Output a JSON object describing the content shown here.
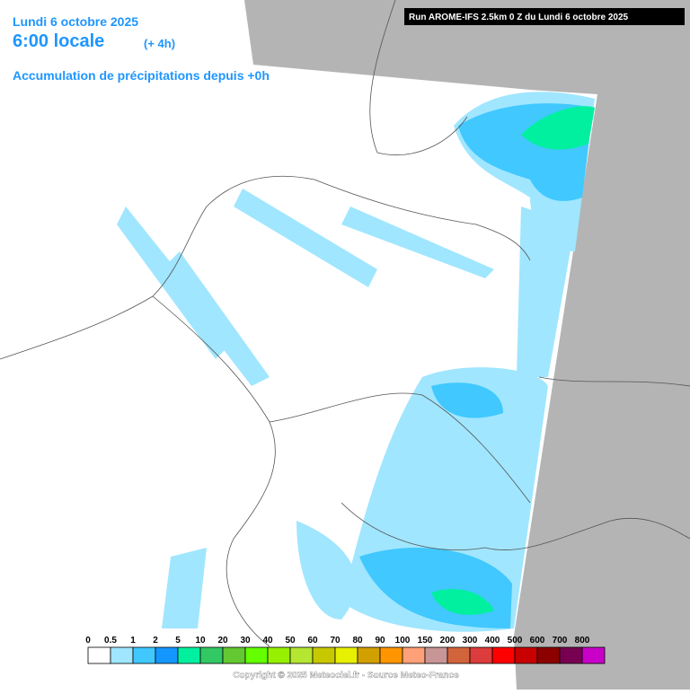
{
  "header": {
    "date": "Lundi 6 octobre 2025",
    "time": "6:00 locale",
    "offset": "(+ 4h)",
    "subtitle": "Accumulation de précipitations depuis +0h",
    "run": "Run AROME-IFS 2.5km 0 Z du Lundi 6 octobre 2025"
  },
  "legend": {
    "items": [
      {
        "label": "0",
        "color": "#ffffff"
      },
      {
        "label": "0.5",
        "color": "#a0e6ff"
      },
      {
        "label": "1",
        "color": "#40c8ff"
      },
      {
        "label": "2",
        "color": "#1496ff"
      },
      {
        "label": "5",
        "color": "#00f0a0"
      },
      {
        "label": "10",
        "color": "#32c864"
      },
      {
        "label": "20",
        "color": "#64c832"
      },
      {
        "label": "30",
        "color": "#64ff00"
      },
      {
        "label": "40",
        "color": "#96f000"
      },
      {
        "label": "50",
        "color": "#b4e632"
      },
      {
        "label": "60",
        "color": "#c8c800"
      },
      {
        "label": "70",
        "color": "#e6f000"
      },
      {
        "label": "80",
        "color": "#d2a000"
      },
      {
        "label": "90",
        "color": "#ff9600"
      },
      {
        "label": "100",
        "color": "#ffa078"
      },
      {
        "label": "150",
        "color": "#c89696"
      },
      {
        "label": "200",
        "color": "#d2643c"
      },
      {
        "label": "300",
        "color": "#dc3c3c"
      },
      {
        "label": "400",
        "color": "#ff0000"
      },
      {
        "label": "500",
        "color": "#c80000"
      },
      {
        "label": "600",
        "color": "#8c0000"
      },
      {
        "label": "700",
        "color": "#780050"
      },
      {
        "label": "800",
        "color": "#c800c8"
      }
    ],
    "copyright": "Copyright © 2025 Meteociel.fr - Source Meteo-France"
  }
}
